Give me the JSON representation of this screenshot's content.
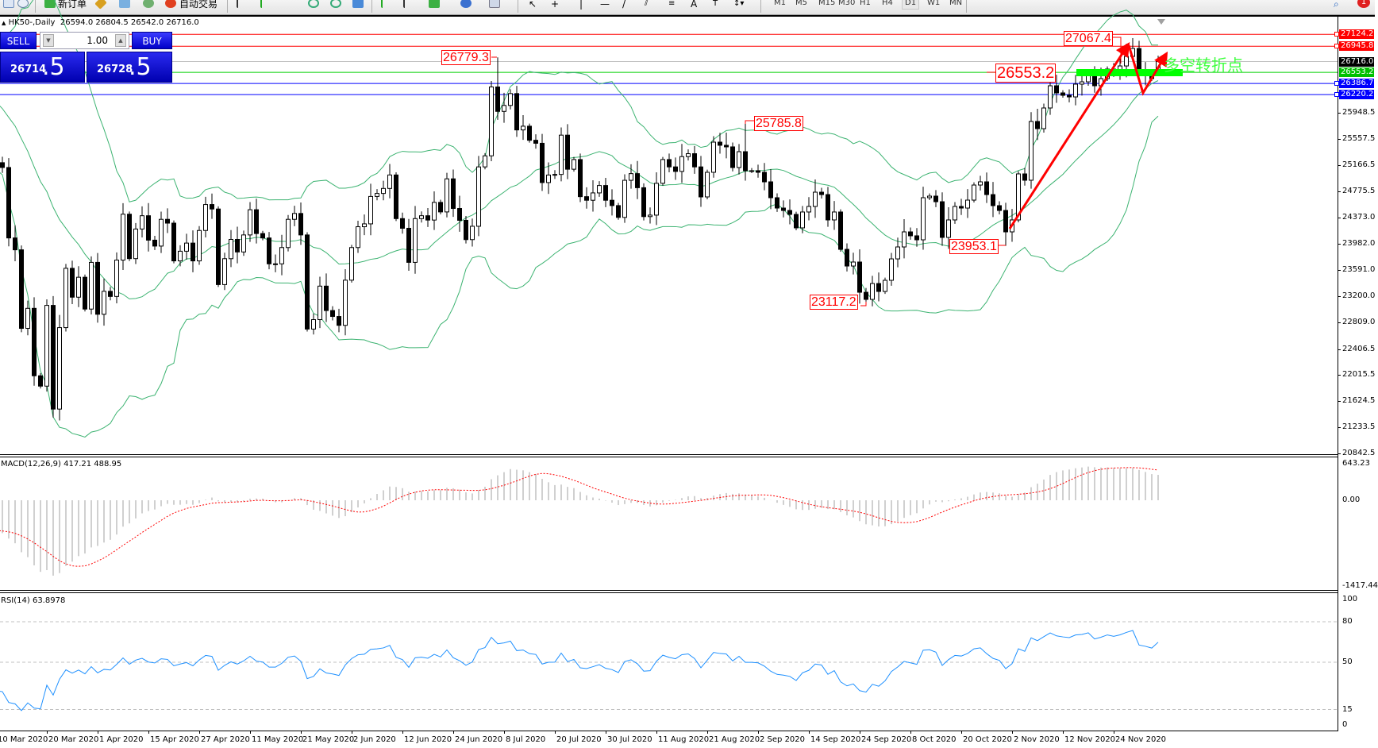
{
  "toolbar": {
    "new_order": "新订单",
    "auto_trading": "自动交易",
    "timeframes": [
      "M1",
      "M5",
      "M15",
      "M30",
      "H1",
      "H4",
      "D1",
      "W1",
      "MN"
    ],
    "active_timeframe": "D1",
    "notification_count": "1"
  },
  "chart": {
    "symbol": "HK50-,Daily",
    "ohlc": "26594.0 26804.5 26542.0 26716.0"
  },
  "trade_panel": {
    "sell": "SELL",
    "buy": "BUY",
    "lots": "1.00",
    "sell_price_main": "26714",
    "sell_price_frac": ".5",
    "buy_price_main": "26728",
    "buy_price_frac": ".5"
  },
  "levels": [
    {
      "label": "27124.2",
      "price": 27124.2,
      "color": "#ff0000"
    },
    {
      "label": "26945.8",
      "price": 26945.8,
      "color": "#ff0000"
    },
    {
      "label": "26716.0",
      "price": 26716.0,
      "color": "#000000",
      "line_color": "#c0c0c0"
    },
    {
      "label": "26553.2",
      "price": 26553.2,
      "color": "#00c000",
      "line_color": "#00d000"
    },
    {
      "label": "26386.7",
      "price": 26386.7,
      "color": "#0000ff"
    },
    {
      "label": "26220.2",
      "price": 26220.2,
      "color": "#0000ff"
    }
  ],
  "annotations": [
    {
      "text": "26779.3",
      "value": 26779.3,
      "bar": 79,
      "kind": "high"
    },
    {
      "text": "25785.8",
      "value": 25785.8,
      "bar": 118,
      "kind": "high"
    },
    {
      "text": "23117.2",
      "value": 23117.2,
      "bar": 137,
      "kind": "low"
    },
    {
      "text": "23953.1",
      "value": 23953.1,
      "bar": 159,
      "kind": "low"
    },
    {
      "text": "27067.4",
      "value": 27067.4,
      "bar": 179,
      "kind": "high"
    },
    {
      "text": "26553.2",
      "value": 26553.2,
      "kind": "level"
    }
  ],
  "note_text": "多空转折点",
  "colors": {
    "bands": "#3cb371",
    "signal": "#ff0000",
    "histogram": "#c0c0c0",
    "rsi": "#1e90ff",
    "arrows": "#ff0000",
    "pivot_bar": "#00ff00"
  },
  "chart_data": {
    "type": "candlestick",
    "timeframe": "Daily",
    "last_bar": {
      "open": 26594.0,
      "high": 26804.5,
      "low": 26542.0,
      "close": 26716.0
    },
    "close": [
      25200,
      25128,
      24072,
      23894,
      22717,
      23017,
      22006,
      21851,
      23061,
      21507,
      22728,
      23617,
      23184,
      23483,
      23006,
      23706,
      22928,
      23272,
      23195,
      23740,
      24428,
      23762,
      24206,
      24405,
      24039,
      23950,
      24351,
      24294,
      23728,
      23873,
      23995,
      23728,
      24184,
      24573,
      24506,
      23373,
      23761,
      24050,
      23862,
      24117,
      24495,
      24138,
      24072,
      23684,
      23684,
      23928,
      24351,
      24439,
      24117,
      22706,
      22848,
      23350,
      22984,
      22895,
      22762,
      23439,
      23928,
      24240,
      24283,
      24694,
      24739,
      24814,
      25016,
      24362,
      24217,
      23706,
      24362,
      24405,
      24340,
      24605,
      24462,
      24958,
      24514,
      24336,
      24047,
      24247,
      25137,
      25303,
      26335,
      25969,
      26058,
      26236,
      25691,
      25747,
      25536,
      25491,
      24902,
      25015,
      25024,
      25613,
      25102,
      25247,
      24691,
      24637,
      24747,
      24858,
      24637,
      24557,
      24380,
      24936,
      25036,
      24825,
      24392,
      24414,
      24891,
      25247,
      25137,
      25069,
      25291,
      25335,
      25137,
      24687,
      25056,
      25508,
      25461,
      25437,
      25127,
      25365,
      25080,
      25080,
      25056,
      24913,
      24675,
      24520,
      24484,
      24425,
      24223,
      24461,
      24544,
      24758,
      24722,
      24342,
      24461,
      23901,
      23651,
      23711,
      23258,
      23151,
      23389,
      23270,
      23437,
      23758,
      23937,
      24163,
      24104,
      24044,
      24675,
      24699,
      24615,
      24080,
      24342,
      24544,
      24520,
      24639,
      24865,
      24913,
      24722,
      24556,
      24484,
      24163,
      24342,
      25032,
      24937,
      25818,
      25710,
      26020,
      26353,
      26246,
      26210,
      26186,
      26377,
      26412,
      26531,
      26353,
      26460,
      26603,
      26567,
      26650,
      26793,
      26912,
      26543,
      26507,
      26460,
      26716
    ],
    "y_ticks": [
      "25948.5",
      "25557.5",
      "25166.5",
      "24775.5",
      "24373.0",
      "23982.0",
      "23591.0",
      "23200.0",
      "22809.0",
      "22406.5",
      "22015.5",
      "21624.5",
      "21233.5",
      "20842.5"
    ],
    "y_range": [
      20842.5,
      27400
    ],
    "x_labels": [
      {
        "bar": 0,
        "text": "10 Mar 2020"
      },
      {
        "bar": 8,
        "text": "20 Mar 2020"
      },
      {
        "bar": 16,
        "text": "1 Apr 2020"
      },
      {
        "bar": 24,
        "text": "15 Apr 2020"
      },
      {
        "bar": 32,
        "text": "27 Apr 2020"
      },
      {
        "bar": 40,
        "text": "11 May 2020"
      },
      {
        "bar": 48,
        "text": "21 May 2020"
      },
      {
        "bar": 56,
        "text": "2 Jun 2020"
      },
      {
        "bar": 64,
        "text": "12 Jun 2020"
      },
      {
        "bar": 72,
        "text": "24 Jun 2020"
      },
      {
        "bar": 80,
        "text": "8 Jul 2020"
      },
      {
        "bar": 88,
        "text": "20 Jul 2020"
      },
      {
        "bar": 96,
        "text": "30 Jul 2020"
      },
      {
        "bar": 104,
        "text": "11 Aug 2020"
      },
      {
        "bar": 112,
        "text": "21 Aug 2020"
      },
      {
        "bar": 120,
        "text": "2 Sep 2020"
      },
      {
        "bar": 128,
        "text": "14 Sep 2020"
      },
      {
        "bar": 136,
        "text": "24 Sep 2020"
      },
      {
        "bar": 144,
        "text": "8 Oct 2020"
      },
      {
        "bar": 152,
        "text": "20 Oct 2020"
      },
      {
        "bar": 160,
        "text": "2 Nov 2020"
      },
      {
        "bar": 168,
        "text": "12 Nov 2020"
      },
      {
        "bar": 176,
        "text": "24 Nov 2020"
      }
    ],
    "indicators": {
      "bollinger": {
        "period": 20,
        "deviation": 2
      },
      "macd": {
        "label": "MACD(12,26,9) 417.21 488.95",
        "fast": 12,
        "slow": 26,
        "signal": 9,
        "main": 417.21,
        "signal_value": 488.95,
        "y_ticks": [
          "643.23",
          "0.00",
          "-1417.44"
        ],
        "y_range": [
          -1417.44,
          643.23
        ]
      },
      "rsi": {
        "label": "RSI(14) 63.8978",
        "period": 14,
        "value": 63.8978,
        "levels": [
          80,
          50,
          15
        ],
        "y_ticks": [
          "100",
          "80",
          "50",
          "15",
          "0"
        ],
        "y_range": [
          0,
          100
        ]
      }
    }
  }
}
